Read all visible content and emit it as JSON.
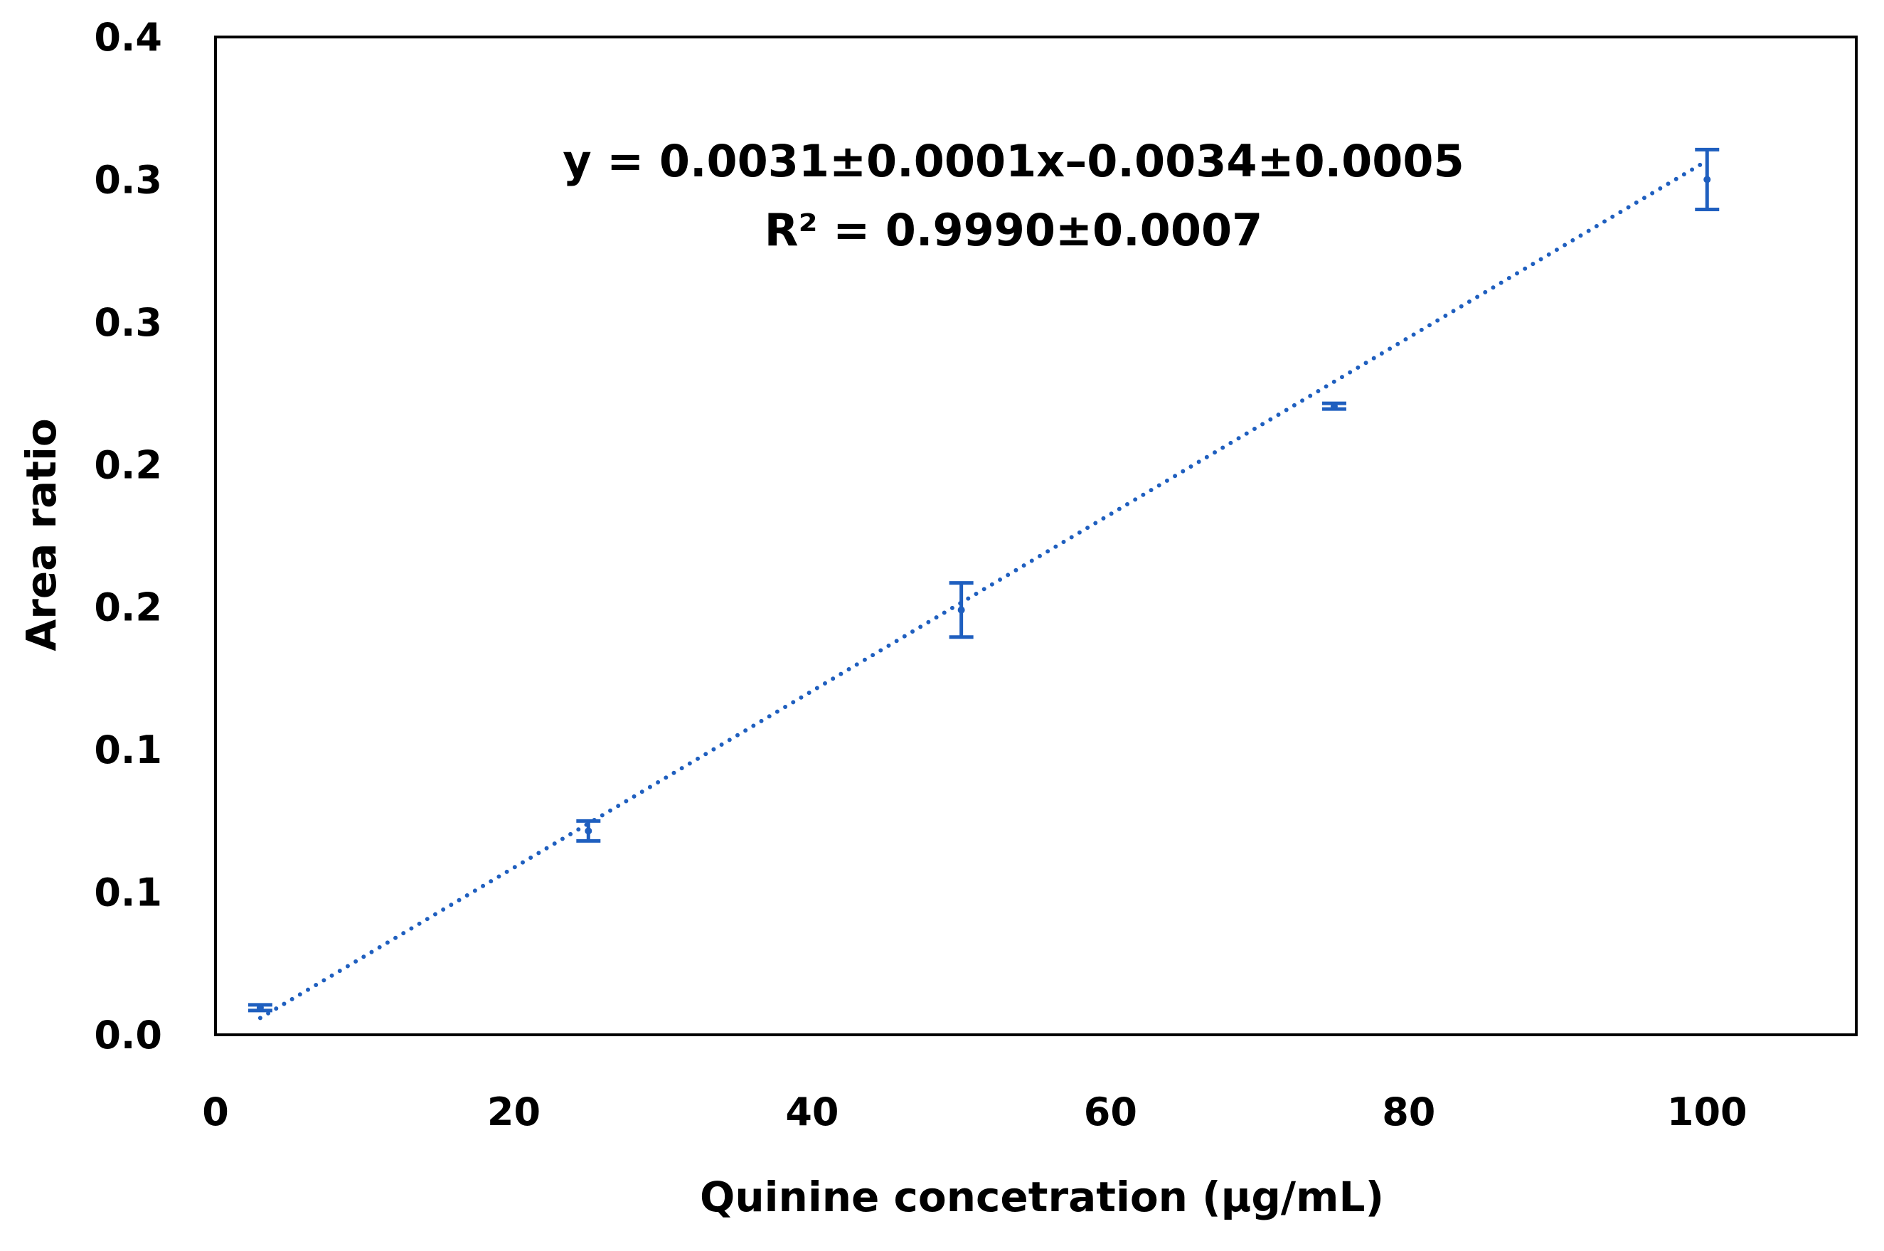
{
  "chart_data": {
    "type": "scatter",
    "xlabel": "Quinine concetration (μg/mL)",
    "ylabel": "Area ratio",
    "xlim": [
      0,
      110
    ],
    "ylim": [
      0,
      0.35
    ],
    "x_ticks": [
      0,
      20,
      40,
      60,
      80,
      100
    ],
    "x_tick_labels": [
      "0",
      "20",
      "40",
      "60",
      "80",
      "100"
    ],
    "y_ticks": [
      0,
      0.05,
      0.1,
      0.15,
      0.2,
      0.25,
      0.3,
      0.35
    ],
    "y_tick_labels": [
      "0.0",
      "0.1",
      "0.1",
      "0.2",
      "0.2",
      "0.3",
      "0.3",
      "0.4"
    ],
    "grid": false,
    "series": [
      {
        "x": [
          3,
          25,
          50,
          75,
          100
        ],
        "y": [
          0.0095,
          0.0715,
          0.149,
          0.2205,
          0.3
        ],
        "yerr": [
          0.001,
          0.0035,
          0.0095,
          0.001,
          0.0105
        ],
        "color": "#1f5fbf"
      }
    ],
    "trendline": {
      "type": "linear",
      "style": "dotted",
      "color": "#1f5fbf",
      "slope": 0.0031,
      "intercept": -0.0034,
      "equation_text": "y =  0.0031±0.0001x–0.0034±0.0005",
      "r2_text": "R²  = 0.9990±0.0007"
    }
  }
}
